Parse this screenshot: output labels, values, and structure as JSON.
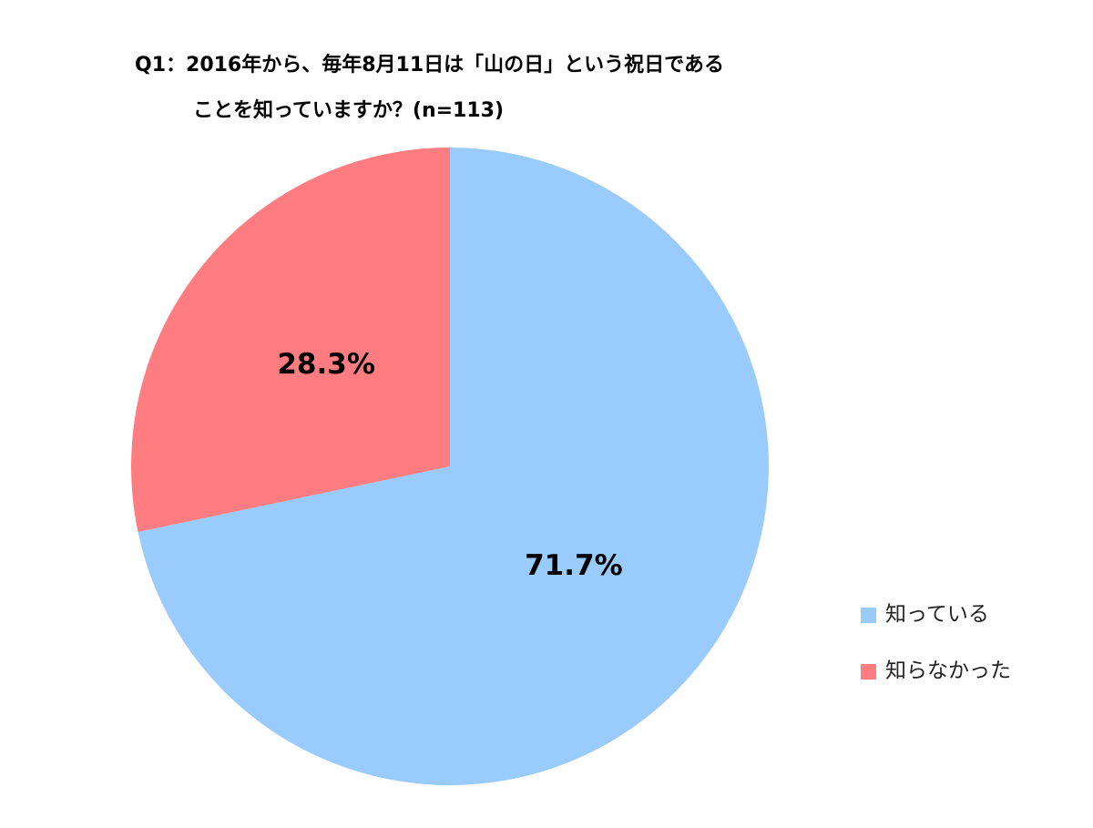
{
  "chart_data": {
    "type": "pie",
    "title": [
      "Q1：2016年から、毎年8月11日は「山の日」という祝日である",
      "ことを知っていますか？(n=113)"
    ],
    "categories": [
      "知っている",
      "知らなかった"
    ],
    "values": [
      71.7,
      28.3
    ],
    "value_labels": [
      "71.7%",
      "28.3%"
    ],
    "colors": [
      "#99cbfd",
      "#ff7c80"
    ],
    "legend": "right"
  }
}
